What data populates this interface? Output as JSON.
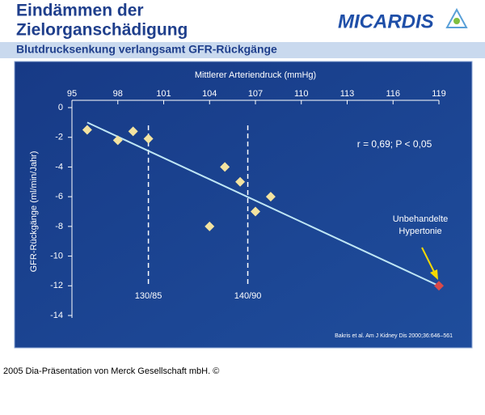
{
  "header": {
    "title_lines": [
      "Eindämmen der",
      "Zielorganschädigung"
    ],
    "logo": "MICARDIS",
    "subtitle": "Blutdrucksenkung verlangsamt GFR-Rückgänge"
  },
  "chart_data": {
    "type": "scatter",
    "x_label": "Mittlerer Arteriendruck (mmHg)",
    "y_label": "GFR-Rückgänge (ml/min/Jahr)",
    "xlim": [
      95,
      119
    ],
    "xticks": [
      95,
      98,
      101,
      104,
      107,
      110,
      113,
      116,
      119
    ],
    "ylim": [
      0,
      -14
    ],
    "yticks": [
      0,
      -2,
      -4,
      -6,
      -8,
      -10,
      -12,
      -14
    ],
    "series": [
      {
        "color": "#f3e3a0",
        "x": [
          96,
          98,
          99,
          100,
          104,
          105,
          106,
          107,
          108
        ],
        "values": [
          -1.5,
          -2.2,
          -1.6,
          -2.1,
          -8,
          -4,
          -5,
          -7,
          -6
        ]
      },
      {
        "color": "#d84a4a",
        "x": [
          119
        ],
        "values": [
          -12
        ]
      }
    ],
    "trend_line": {
      "color": "#bfe6f5",
      "x": [
        96,
        119
      ],
      "values": [
        -1,
        -12
      ]
    },
    "reference_lines": [
      {
        "x": 100,
        "label": "130/85"
      },
      {
        "x": 106.5,
        "label": "140/90"
      }
    ],
    "annotations": [
      "r = 0,69; P < 0,05",
      "Unbehandelte",
      "Hypertonie"
    ],
    "source": "Bakris et al. Am J Kidney Dis 2000;36:646–561"
  },
  "footer": "2005 Dia-Präsentation von Merck Gesellschaft mbH. ©"
}
